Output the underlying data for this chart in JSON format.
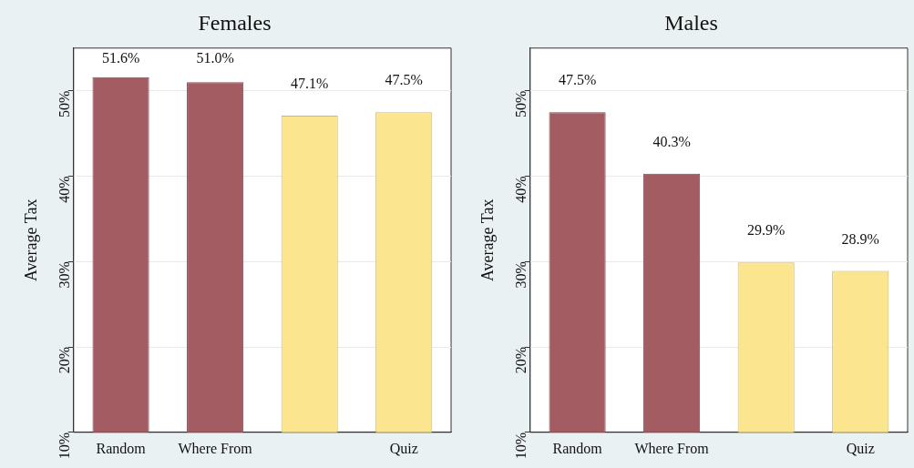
{
  "chart_data": [
    {
      "type": "bar",
      "title": "Females",
      "ylabel": "Average Tax",
      "categories": [
        "Random",
        "Where From",
        null,
        "Quiz"
      ],
      "values": [
        51.6,
        51.0,
        47.1,
        47.5
      ],
      "colors": [
        "#a35c61",
        "#a35c61",
        "#fce58f",
        "#fce58f"
      ],
      "value_labels": [
        "51.6%",
        "51.0%",
        "47.1%",
        "47.5%"
      ],
      "ylim": [
        10,
        55
      ],
      "yticks": [
        {
          "value": 10,
          "label": "10%"
        },
        {
          "value": 20,
          "label": "20%"
        },
        {
          "value": 30,
          "label": "30%"
        },
        {
          "value": 40,
          "label": "40%"
        },
        {
          "value": 50,
          "label": "50%"
        }
      ],
      "grid": "y",
      "legend": false
    },
    {
      "type": "bar",
      "title": "Males",
      "ylabel": "Average Tax",
      "categories": [
        "Random",
        "Where From",
        null,
        "Quiz"
      ],
      "values": [
        47.5,
        40.3,
        29.9,
        28.9
      ],
      "colors": [
        "#a35c61",
        "#a35c61",
        "#fce58f",
        "#fce58f"
      ],
      "value_labels": [
        "47.5%",
        "40.3%",
        "29.9%",
        "28.9%"
      ],
      "ylim": [
        10,
        55
      ],
      "yticks": [
        {
          "value": 10,
          "label": "10%"
        },
        {
          "value": 20,
          "label": "20%"
        },
        {
          "value": 30,
          "label": "30%"
        },
        {
          "value": 40,
          "label": "40%"
        },
        {
          "value": 50,
          "label": "50%"
        }
      ],
      "grid": "y",
      "legend": false
    }
  ]
}
